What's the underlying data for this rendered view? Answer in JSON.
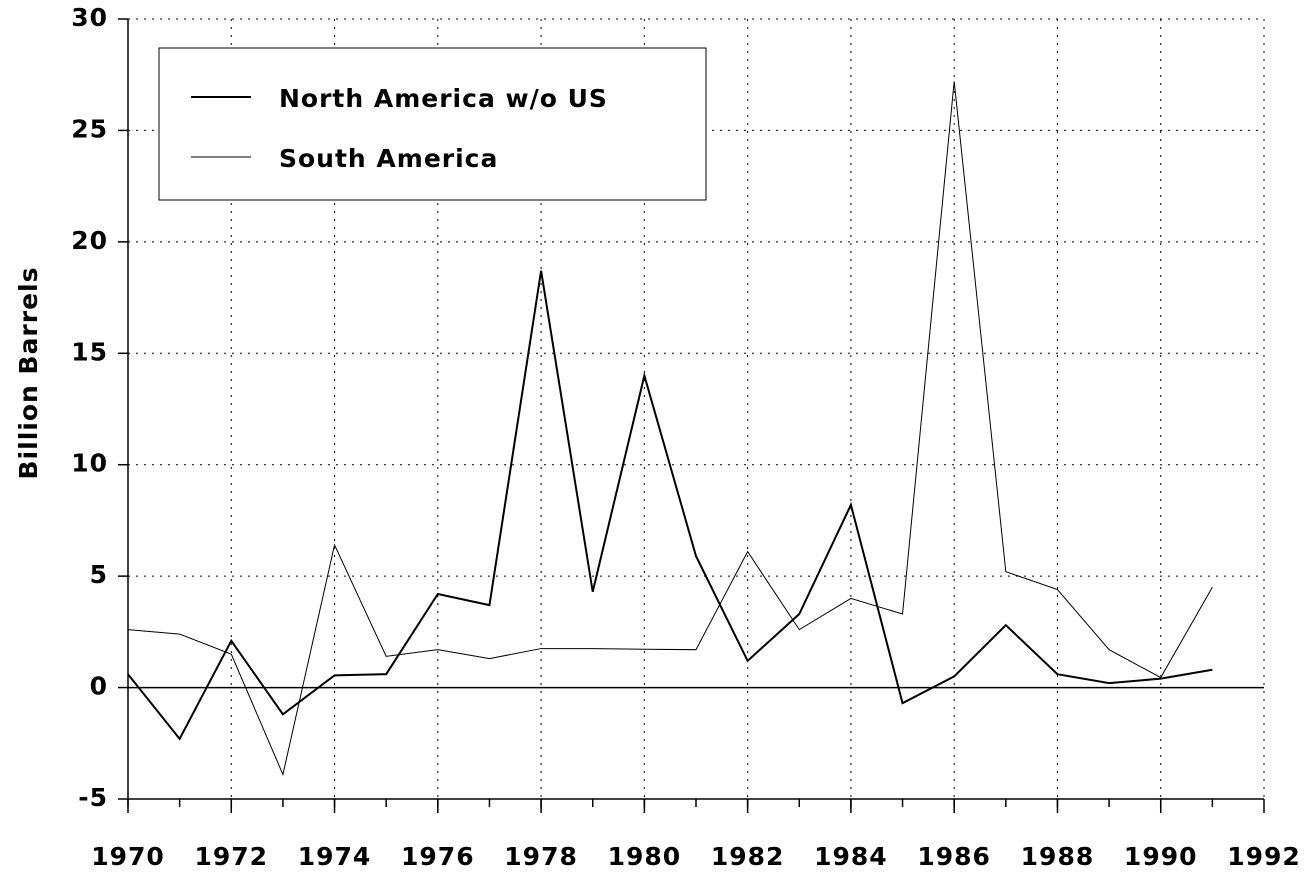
{
  "chart_data": {
    "type": "line",
    "y_label": "Billion Barrels",
    "x": [
      1970,
      1971,
      1972,
      1973,
      1974,
      1975,
      1976,
      1977,
      1978,
      1979,
      1980,
      1981,
      1982,
      1983,
      1984,
      1985,
      1986,
      1987,
      1988,
      1989,
      1990,
      1991
    ],
    "series": [
      {
        "name": "North America w/o US",
        "color": "#000000",
        "line_width": 2,
        "values": [
          0.6,
          -2.3,
          2.1,
          -1.2,
          0.55,
          0.6,
          4.2,
          3.7,
          18.7,
          4.3,
          14.0,
          5.9,
          1.2,
          3.3,
          8.2,
          -0.7,
          0.5,
          2.8,
          0.6,
          0.2,
          0.4,
          0.8
        ]
      },
      {
        "name": "South America",
        "color": "#000000",
        "line_width": 1,
        "values": [
          2.6,
          2.4,
          1.5,
          -3.9,
          6.4,
          1.4,
          1.7,
          1.3,
          1.75,
          1.75,
          1.72,
          1.7,
          6.1,
          2.6,
          4.0,
          3.3,
          27.2,
          5.2,
          4.4,
          1.7,
          0.45,
          4.5
        ]
      }
    ],
    "xlim": [
      1970,
      1992
    ],
    "xticks": [
      1970,
      1972,
      1974,
      1976,
      1978,
      1980,
      1982,
      1984,
      1986,
      1988,
      1990,
      1992
    ],
    "ylim": [
      -5,
      30
    ],
    "yticks": [
      -5,
      0,
      5,
      10,
      15,
      20,
      25,
      30
    ],
    "grid": true,
    "legend": "upper left"
  }
}
